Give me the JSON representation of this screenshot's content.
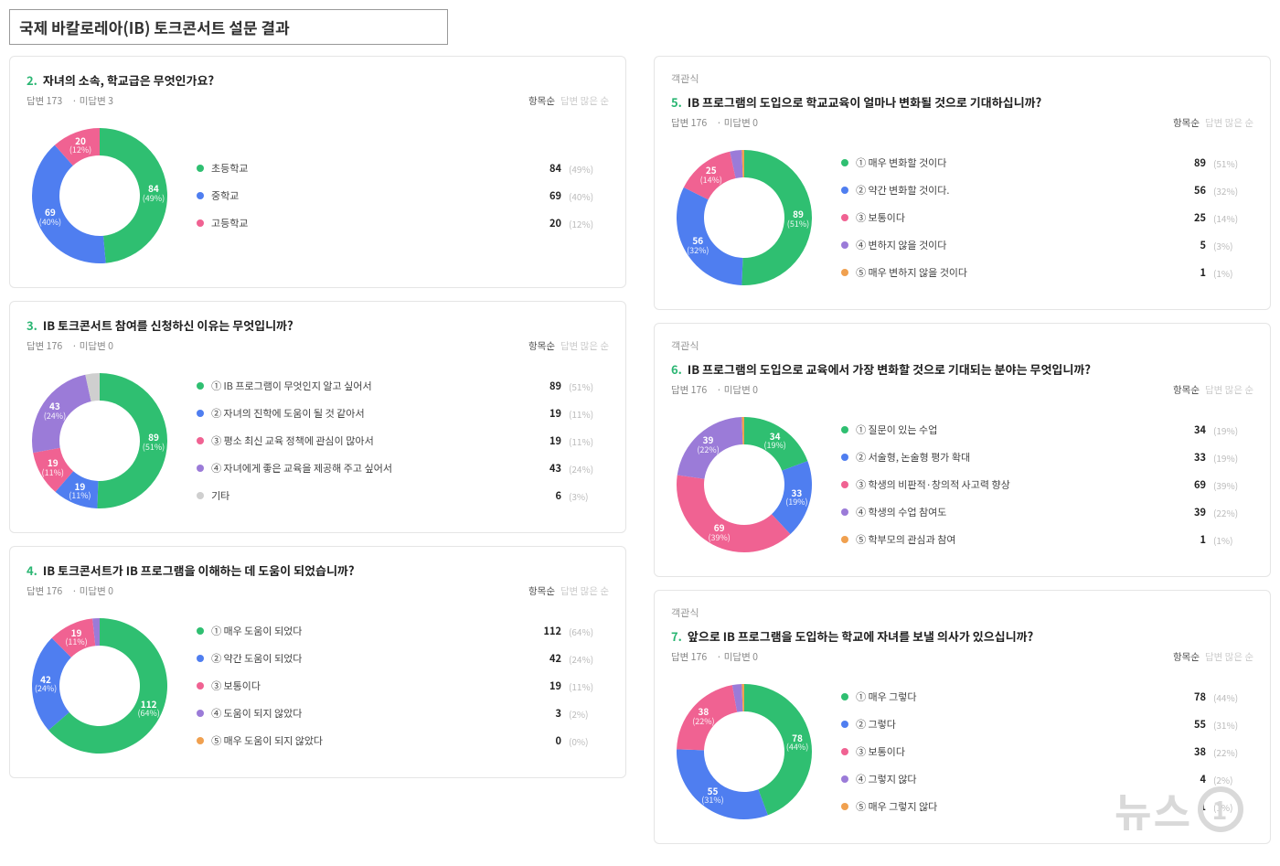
{
  "page_title": "국제 바칼로레아(IB) 토크콘서트 설문 결과",
  "watermark": "뉴스",
  "watermark_num": "1",
  "common": {
    "answered_label": "답변",
    "unanswered_label": "미답변",
    "sort_a": "항목순",
    "sort_b": "답변 많은 순",
    "category_tag": "객관식"
  },
  "palette": {
    "green": "#2fbf71",
    "blue": "#4f7ef0",
    "pink": "#f06292",
    "purple": "#9b7bd8",
    "orange": "#f0a04f",
    "grey": "#cfcfcf"
  },
  "donut": {
    "outer_r": 74,
    "inner_r": 44,
    "label_r": 59,
    "start_angle_deg": -90,
    "min_label_pct": 5
  },
  "questions": [
    {
      "id": "q2",
      "num": "2.",
      "text": "자녀의 소속, 학교급은 무엇인가요?",
      "answered": 173,
      "unanswered": 3,
      "show_tag": false,
      "items": [
        {
          "label": "초등학교",
          "count": 84,
          "pct": 49,
          "color": "#2fbf71"
        },
        {
          "label": "중학교",
          "count": 69,
          "pct": 40,
          "color": "#4f7ef0"
        },
        {
          "label": "고등학교",
          "count": 20,
          "pct": 12,
          "color": "#f06292"
        }
      ]
    },
    {
      "id": "q3",
      "num": "3.",
      "text": "IB 토크콘서트 참여를 신청하신 이유는 무엇입니까?",
      "answered": 176,
      "unanswered": 0,
      "show_tag": false,
      "items": [
        {
          "label": "① IB 프로그램이 무엇인지 알고 싶어서",
          "count": 89,
          "pct": 51,
          "color": "#2fbf71"
        },
        {
          "label": "② 자녀의 진학에 도움이 될 것 같아서",
          "count": 19,
          "pct": 11,
          "color": "#4f7ef0"
        },
        {
          "label": "③ 평소 최신 교육 정책에 관심이 많아서",
          "count": 19,
          "pct": 11,
          "color": "#f06292"
        },
        {
          "label": "④ 자녀에게 좋은 교육을 제공해 주고 싶어서",
          "count": 43,
          "pct": 24,
          "color": "#9b7bd8"
        },
        {
          "label": "기타",
          "count": 6,
          "pct": 3,
          "color": "#cfcfcf"
        }
      ]
    },
    {
      "id": "q4",
      "num": "4.",
      "text": "IB 토크콘서트가 IB 프로그램을 이해하는 데 도움이 되었습니까?",
      "answered": 176,
      "unanswered": 0,
      "show_tag": false,
      "items": [
        {
          "label": "① 매우 도움이 되었다",
          "count": 112,
          "pct": 64,
          "color": "#2fbf71"
        },
        {
          "label": "② 약간 도움이 되었다",
          "count": 42,
          "pct": 24,
          "color": "#4f7ef0"
        },
        {
          "label": "③ 보통이다",
          "count": 19,
          "pct": 11,
          "color": "#f06292"
        },
        {
          "label": "④ 도움이 되지 않았다",
          "count": 3,
          "pct": 2,
          "color": "#9b7bd8"
        },
        {
          "label": "⑤ 매우 도움이 되지 않았다",
          "count": 0,
          "pct": 0,
          "color": "#f0a04f"
        }
      ]
    },
    {
      "id": "q5",
      "num": "5.",
      "text": "IB 프로그램의 도입으로 학교교육이 얼마나 변화될 것으로 기대하십니까?",
      "answered": 176,
      "unanswered": 0,
      "show_tag": true,
      "items": [
        {
          "label": "① 매우 변화할 것이다",
          "count": 89,
          "pct": 51,
          "color": "#2fbf71"
        },
        {
          "label": "② 약간 변화할 것이다.",
          "count": 56,
          "pct": 32,
          "color": "#4f7ef0"
        },
        {
          "label": "③ 보통이다",
          "count": 25,
          "pct": 14,
          "color": "#f06292"
        },
        {
          "label": "④ 변하지 않을 것이다",
          "count": 5,
          "pct": 3,
          "color": "#9b7bd8"
        },
        {
          "label": "⑤ 매우 변하지 않을 것이다",
          "count": 1,
          "pct": 1,
          "color": "#f0a04f"
        }
      ]
    },
    {
      "id": "q6",
      "num": "6.",
      "text": "IB 프로그램의 도입으로 교육에서 가장 변화할 것으로 기대되는 분야는 무엇입니까?",
      "answered": 176,
      "unanswered": 0,
      "show_tag": true,
      "items": [
        {
          "label": "① 질문이 있는 수업",
          "count": 34,
          "pct": 19,
          "color": "#2fbf71"
        },
        {
          "label": "② 서술형, 논술형 평가 확대",
          "count": 33,
          "pct": 19,
          "color": "#4f7ef0"
        },
        {
          "label": "③ 학생의 비판적·창의적 사고력 향상",
          "count": 69,
          "pct": 39,
          "color": "#f06292"
        },
        {
          "label": "④ 학생의 수업 참여도",
          "count": 39,
          "pct": 22,
          "color": "#9b7bd8"
        },
        {
          "label": "⑤ 학부모의 관심과 참여",
          "count": 1,
          "pct": 1,
          "color": "#f0a04f"
        }
      ]
    },
    {
      "id": "q7",
      "num": "7.",
      "text": "앞으로 IB 프로그램을 도입하는 학교에 자녀를 보낼 의사가 있으십니까?",
      "answered": 176,
      "unanswered": 0,
      "show_tag": true,
      "items": [
        {
          "label": "① 매우 그렇다",
          "count": 78,
          "pct": 44,
          "color": "#2fbf71"
        },
        {
          "label": "② 그렇다",
          "count": 55,
          "pct": 31,
          "color": "#4f7ef0"
        },
        {
          "label": "③ 보통이다",
          "count": 38,
          "pct": 22,
          "color": "#f06292"
        },
        {
          "label": "④ 그렇지 않다",
          "count": 4,
          "pct": 2,
          "color": "#9b7bd8"
        },
        {
          "label": "⑤ 매우 그렇지 않다",
          "count": 1,
          "pct": 1,
          "color": "#f0a04f"
        }
      ]
    }
  ],
  "layout": {
    "left": [
      "q2",
      "q3",
      "q4"
    ],
    "right": [
      "q5",
      "q6",
      "q7"
    ]
  }
}
